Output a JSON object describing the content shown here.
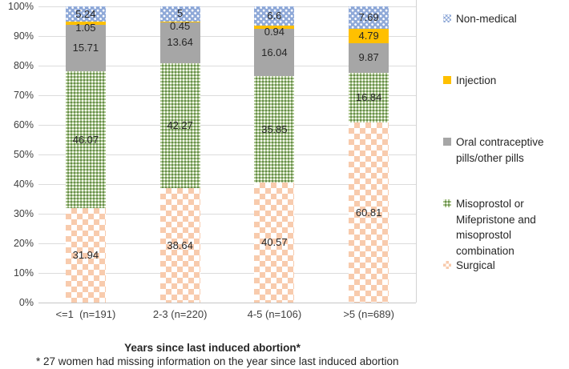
{
  "chart_data": {
    "type": "bar",
    "stacked": true,
    "unit": "%",
    "categories": [
      "<=1  (n=191)",
      "2-3 (n=220)",
      "4-5 (n=106)",
      ">5 (n=689)"
    ],
    "series": [
      {
        "key": "surgical",
        "name": "Surgical",
        "pattern": "checker",
        "color": "#f8cbad",
        "values": [
          31.94,
          38.64,
          40.57,
          60.81
        ]
      },
      {
        "key": "misoprostol",
        "name": "Misoprostol or Mifepristone and misoprostol combination",
        "pattern": "fine",
        "color": "#a6c189",
        "values": [
          46.07,
          42.27,
          35.85,
          16.84
        ]
      },
      {
        "key": "oral-pills",
        "name": "Oral contraceptive pills/other pills",
        "pattern": "solid",
        "color": "#a6a6a6",
        "values": [
          15.71,
          13.64,
          16.04,
          9.87
        ]
      },
      {
        "key": "injection",
        "name": "Injection",
        "pattern": "solid",
        "color": "#ffc000",
        "values": [
          1.05,
          0.45,
          0.94,
          4.79
        ]
      },
      {
        "key": "non-medical",
        "name": "Non-medical",
        "pattern": "dots",
        "color": "#8fa9d8",
        "values": [
          5.24,
          5,
          6.6,
          7.69
        ]
      }
    ],
    "legend_order": [
      "non-medical",
      "injection",
      "oral-pills",
      "misoprostol",
      "surgical"
    ],
    "legend_position": "right",
    "grid": true,
    "ylim": [
      0,
      100
    ],
    "y_ticks": [
      "0%",
      "10%",
      "20%",
      "30%",
      "40%",
      "50%",
      "60%",
      "70%",
      "80%",
      "90%",
      "100%"
    ],
    "xlabel": "Years since last induced abortion*",
    "footnote": "* 27 women had missing information on the year since last induced abortion"
  }
}
